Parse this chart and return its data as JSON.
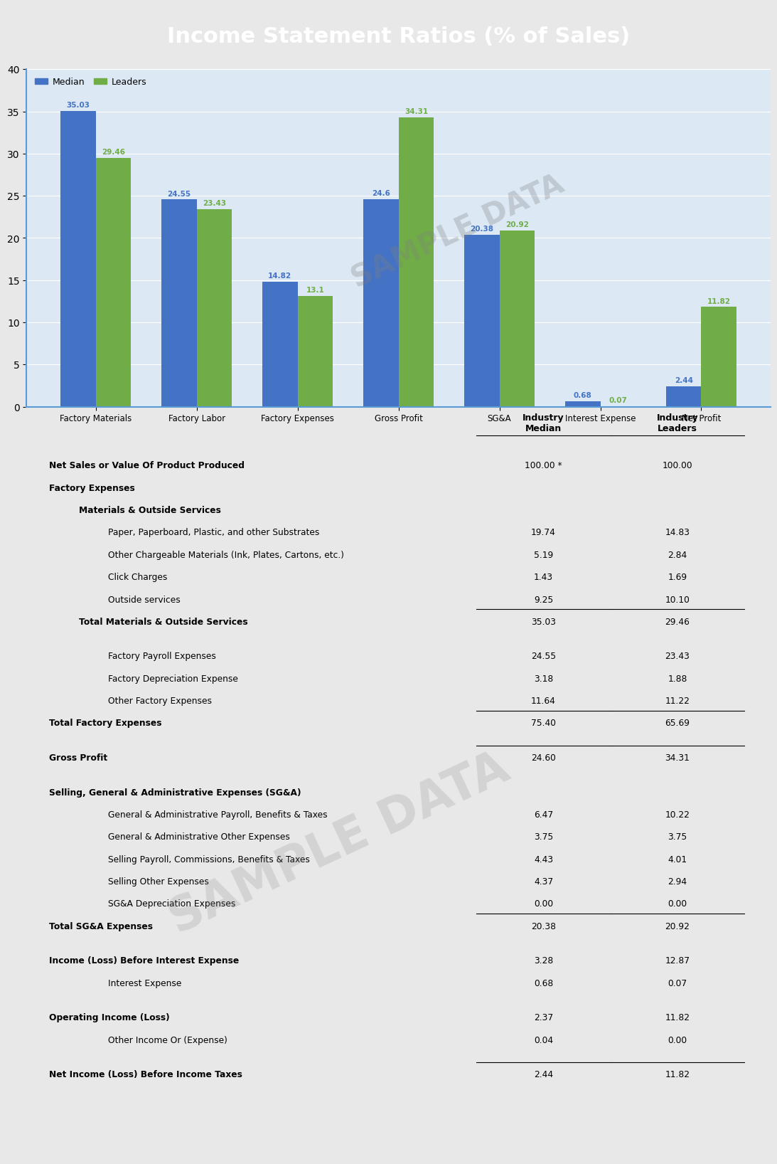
{
  "title": "Income Statement Ratios (% of Sales)",
  "title_bg_color": "#1e6a8a",
  "title_text_color": "#ffffff",
  "chart_bg_color": "#dce9f5",
  "chart_border_color": "#5b9bd5",
  "table_bg_color": "#ffffff",
  "table_border_color": "#4caf50",
  "bar_categories": [
    "Factory Materials",
    "Factory Labor",
    "Factory Expenses",
    "Gross Profit",
    "SG&A",
    "Interest Expense",
    "Net Profit"
  ],
  "median_values": [
    35.03,
    24.55,
    14.82,
    24.6,
    20.38,
    0.68,
    2.44
  ],
  "leaders_values": [
    29.46,
    23.43,
    13.1,
    34.31,
    20.92,
    0.07,
    11.82
  ],
  "median_color": "#4472c4",
  "leaders_color": "#70ad47",
  "ylim": [
    0,
    40
  ],
  "yticks": [
    0,
    5,
    10,
    15,
    20,
    25,
    30,
    35,
    40
  ],
  "col_header_median": "Industry\nMedian",
  "col_header_leaders": "Industry\nLeaders",
  "table_rows": [
    {
      "label": "Net Sales or Value Of Product Produced",
      "median": "100.00 *",
      "leaders": "100.00",
      "bold": true,
      "indent": 0,
      "separator_above": false,
      "extra_space_below": false
    },
    {
      "label": "Factory Expenses",
      "median": "",
      "leaders": "",
      "bold": true,
      "indent": 0,
      "separator_above": false,
      "extra_space_below": false
    },
    {
      "label": "Materials & Outside Services",
      "median": "",
      "leaders": "",
      "bold": true,
      "indent": 1,
      "separator_above": false,
      "extra_space_below": false
    },
    {
      "label": "Paper, Paperboard, Plastic, and other Substrates",
      "median": "19.74",
      "leaders": "14.83",
      "bold": false,
      "indent": 2,
      "separator_above": false,
      "extra_space_below": false
    },
    {
      "label": "Other Chargeable Materials (Ink, Plates, Cartons, etc.)",
      "median": "5.19",
      "leaders": "2.84",
      "bold": false,
      "indent": 2,
      "separator_above": false,
      "extra_space_below": false
    },
    {
      "label": "Click Charges",
      "median": "1.43",
      "leaders": "1.69",
      "bold": false,
      "indent": 2,
      "separator_above": false,
      "extra_space_below": false
    },
    {
      "label": "Outside services",
      "median": "9.25",
      "leaders": "10.10",
      "bold": false,
      "indent": 2,
      "separator_above": false,
      "extra_space_below": false
    },
    {
      "label": "Total Materials & Outside Services",
      "median": "35.03",
      "leaders": "29.46",
      "bold": true,
      "indent": 1,
      "separator_above": true,
      "extra_space_below": true
    },
    {
      "label": "Factory Payroll Expenses",
      "median": "24.55",
      "leaders": "23.43",
      "bold": false,
      "indent": 2,
      "separator_above": false,
      "extra_space_below": false
    },
    {
      "label": "Factory Depreciation Expense",
      "median": "3.18",
      "leaders": "1.88",
      "bold": false,
      "indent": 2,
      "separator_above": false,
      "extra_space_below": false
    },
    {
      "label": "Other Factory Expenses",
      "median": "11.64",
      "leaders": "11.22",
      "bold": false,
      "indent": 2,
      "separator_above": false,
      "extra_space_below": false
    },
    {
      "label": "Total Factory Expenses",
      "median": "75.40",
      "leaders": "65.69",
      "bold": true,
      "indent": 0,
      "separator_above": true,
      "extra_space_below": true
    },
    {
      "label": "Gross Profit",
      "median": "24.60",
      "leaders": "34.31",
      "bold": true,
      "indent": 0,
      "separator_above": true,
      "extra_space_below": true
    },
    {
      "label": "Selling, General & Administrative Expenses (SG&A)",
      "median": "",
      "leaders": "",
      "bold": true,
      "indent": 0,
      "separator_above": false,
      "extra_space_below": false
    },
    {
      "label": "General & Administrative Payroll, Benefits & Taxes",
      "median": "6.47",
      "leaders": "10.22",
      "bold": false,
      "indent": 2,
      "separator_above": false,
      "extra_space_below": false
    },
    {
      "label": "General & Administrative Other Expenses",
      "median": "3.75",
      "leaders": "3.75",
      "bold": false,
      "indent": 2,
      "separator_above": false,
      "extra_space_below": false
    },
    {
      "label": "Selling Payroll, Commissions, Benefits & Taxes",
      "median": "4.43",
      "leaders": "4.01",
      "bold": false,
      "indent": 2,
      "separator_above": false,
      "extra_space_below": false
    },
    {
      "label": "Selling Other Expenses",
      "median": "4.37",
      "leaders": "2.94",
      "bold": false,
      "indent": 2,
      "separator_above": false,
      "extra_space_below": false
    },
    {
      "label": "SG&A Depreciation Expenses",
      "median": "0.00",
      "leaders": "0.00",
      "bold": false,
      "indent": 2,
      "separator_above": false,
      "extra_space_below": false
    },
    {
      "label": "Total SG&A Expenses",
      "median": "20.38",
      "leaders": "20.92",
      "bold": true,
      "indent": 0,
      "separator_above": true,
      "extra_space_below": true
    },
    {
      "label": "Income (Loss) Before Interest Expense",
      "median": "3.28",
      "leaders": "12.87",
      "bold": true,
      "indent": 0,
      "separator_above": false,
      "extra_space_below": false
    },
    {
      "label": "Interest Expense",
      "median": "0.68",
      "leaders": "0.07",
      "bold": false,
      "indent": 2,
      "separator_above": false,
      "extra_space_below": true
    },
    {
      "label": "Operating Income (Loss)",
      "median": "2.37",
      "leaders": "11.82",
      "bold": true,
      "indent": 0,
      "separator_above": false,
      "extra_space_below": false
    },
    {
      "label": "Other Income Or (Expense)",
      "median": "0.04",
      "leaders": "0.00",
      "bold": false,
      "indent": 2,
      "separator_above": false,
      "extra_space_below": true
    },
    {
      "label": "Net Income (Loss) Before Income Taxes",
      "median": "2.44",
      "leaders": "11.82",
      "bold": true,
      "indent": 0,
      "separator_above": true,
      "extra_space_below": false
    }
  ]
}
